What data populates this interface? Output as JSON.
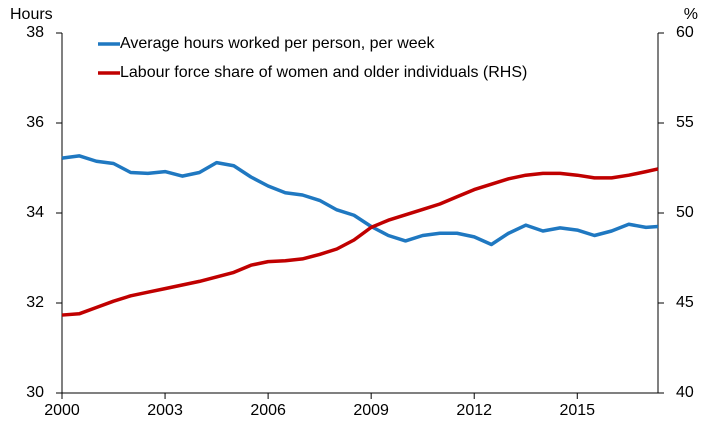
{
  "chart_data": {
    "type": "line",
    "y_label": "Hours",
    "y2_label": "%",
    "x": [
      2000,
      2000.5,
      2001,
      2001.5,
      2002,
      2002.5,
      2003,
      2003.5,
      2004,
      2004.5,
      2005,
      2005.5,
      2006,
      2006.5,
      2007,
      2007.5,
      2008,
      2008.5,
      2009,
      2009.5,
      2010,
      2010.5,
      2011,
      2011.5,
      2012,
      2012.5,
      2013,
      2013.5,
      2014,
      2014.5,
      2015,
      2015.5,
      2016,
      2016.5,
      2017,
      2017.35
    ],
    "series": [
      {
        "name": "Average hours worked per person, per week",
        "color": "#1f78c1",
        "axis": "y",
        "values": [
          35.22,
          35.27,
          35.15,
          35.1,
          34.9,
          34.88,
          34.92,
          34.82,
          34.9,
          35.12,
          35.05,
          34.8,
          34.6,
          34.45,
          34.4,
          34.28,
          34.07,
          33.95,
          33.7,
          33.5,
          33.38,
          33.5,
          33.55,
          33.55,
          33.47,
          33.3,
          33.55,
          33.73,
          33.6,
          33.67,
          33.62,
          33.5,
          33.6,
          33.75,
          33.68,
          33.7
        ]
      },
      {
        "name": "Labour force share of women and older individuals (RHS)",
        "color": "#c00000",
        "axis": "y2",
        "values": [
          44.33,
          44.4,
          44.75,
          45.1,
          45.4,
          45.6,
          45.8,
          46.0,
          46.2,
          46.45,
          46.7,
          47.1,
          47.3,
          47.35,
          47.45,
          47.7,
          48.0,
          48.5,
          49.2,
          49.6,
          49.9,
          50.2,
          50.5,
          50.9,
          51.3,
          51.6,
          51.9,
          52.1,
          52.2,
          52.2,
          52.1,
          51.95,
          51.95,
          52.1,
          52.3,
          52.45
        ]
      }
    ],
    "xlim": [
      2000,
      2017.35
    ],
    "xticks": [
      2000,
      2003,
      2006,
      2009,
      2012,
      2015
    ],
    "ylim": [
      30,
      38
    ],
    "yticks": [
      30,
      32,
      34,
      36,
      38
    ],
    "y2lim": [
      40,
      60
    ],
    "y2ticks": [
      40,
      45,
      50,
      55,
      60
    ],
    "grid": false,
    "legend": "top-left"
  }
}
